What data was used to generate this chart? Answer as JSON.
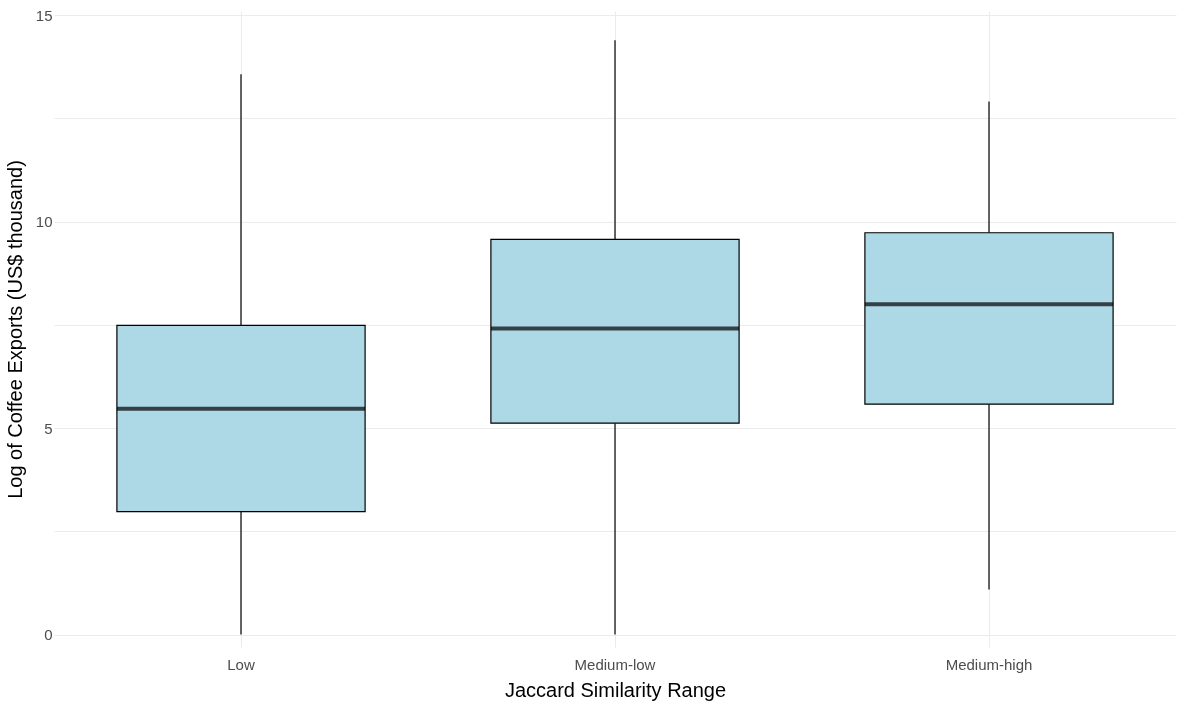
{
  "chart_data": {
    "type": "box",
    "xlabel": "Jaccard Similarity Range",
    "ylabel": "Log of Coffee Exports (US$ thousand)",
    "categories": [
      "Low",
      "Medium-low",
      "Medium-high"
    ],
    "boxes": [
      {
        "low": 0,
        "q1": 2.98,
        "median": 5.47,
        "q3": 7.49,
        "high": 13.57
      },
      {
        "low": 0,
        "q1": 5.12,
        "median": 7.41,
        "q3": 9.57,
        "high": 14.39
      },
      {
        "low": 1.09,
        "q1": 5.58,
        "median": 8.0,
        "q3": 9.73,
        "high": 12.91
      }
    ],
    "color": "#add8e6",
    "ylim": [
      -0.3,
      15.1
    ],
    "yticks": [
      0,
      {
        "value": 2.5,
        "label": null
      },
      5,
      {
        "value": 7.5,
        "label": null
      },
      10,
      {
        "value": 12.5,
        "label": null
      },
      15
    ],
    "grid": true
  }
}
